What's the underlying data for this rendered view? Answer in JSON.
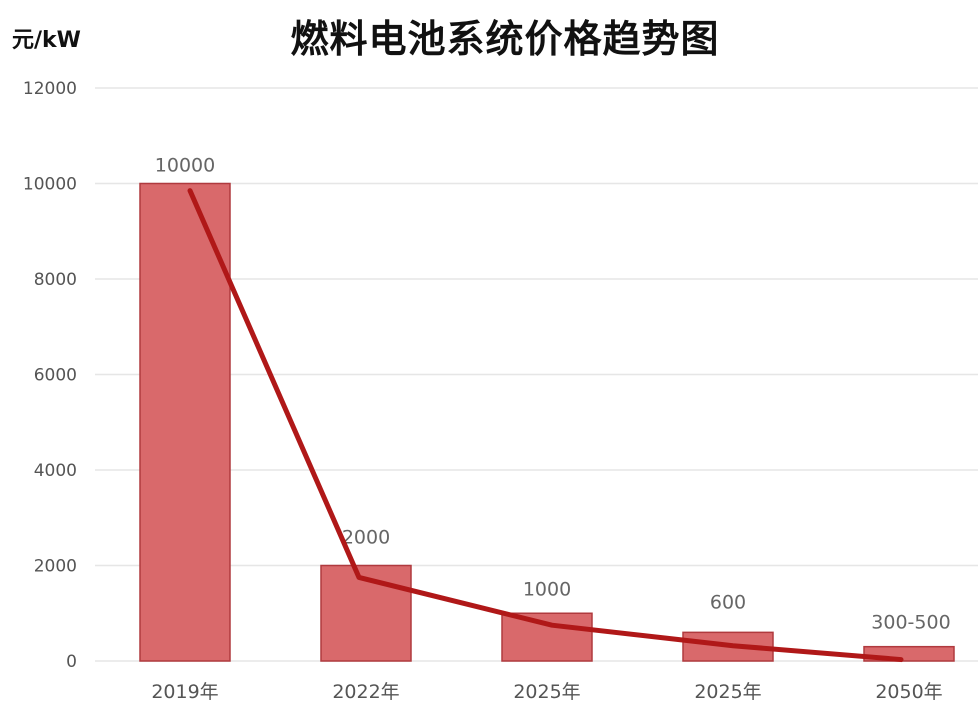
{
  "chart_data": {
    "type": "bar",
    "title": "燃料电池系统价格趋势图",
    "ylabel": "元/kW",
    "xlabel": "",
    "categories": [
      "2019年",
      "2022年",
      "2025年",
      "2025年",
      "2050年"
    ],
    "values": [
      10000,
      2000,
      1000,
      600,
      300
    ],
    "data_labels": [
      "10000",
      "2000",
      "1000",
      "600",
      "300-500"
    ],
    "trend_line": [
      9850,
      1750,
      750,
      320,
      30
    ],
    "ylim": [
      0,
      12000
    ],
    "yticks": [
      "0",
      "2000",
      "4000",
      "6000",
      "8000",
      "10000",
      "12000"
    ],
    "grid": true,
    "legend": "none",
    "colors": {
      "bar_fill": "#d9696b",
      "bar_stroke": "#b03a3e",
      "line": "#b01818",
      "grid": "#e6e6e6",
      "tick_text": "#555555",
      "label_text": "#666666"
    }
  }
}
